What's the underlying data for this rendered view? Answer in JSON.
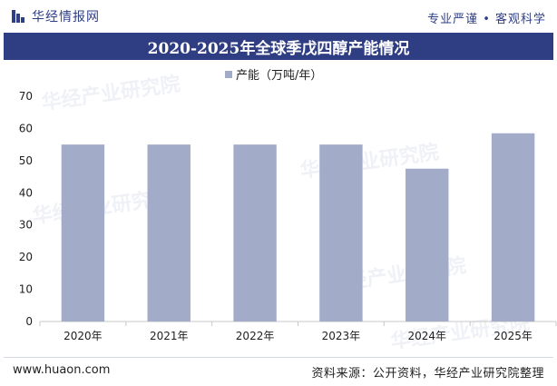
{
  "header": {
    "brand": "华经情报网",
    "brand_icon": "bar-logo-icon",
    "tagline": "专业严谨 • 客观科学"
  },
  "footer": {
    "website": "www.huaon.com",
    "source": "资料来源：公开资料，华经产业研究院整理"
  },
  "watermark": {
    "text": "华经产业研究院"
  },
  "colors": {
    "bar": "#a2acc8",
    "title_bg": "#2f3d83",
    "brand": "#2f3f86"
  },
  "chart_data": {
    "type": "bar",
    "title": "2020-2025年全球季戊四醇产能情况",
    "categories": [
      "2020年",
      "2021年",
      "2022年",
      "2023年",
      "2024年",
      "2025年"
    ],
    "series": [
      {
        "name": "产能（万吨/年）",
        "values": [
          55,
          55,
          55,
          55,
          47.5,
          58.5
        ]
      }
    ],
    "xlabel": "",
    "ylabel": "",
    "ylim": [
      0,
      70
    ],
    "yticks": [
      0,
      10,
      20,
      30,
      40,
      50,
      60,
      70
    ],
    "grid": false,
    "legend": "top-center"
  }
}
